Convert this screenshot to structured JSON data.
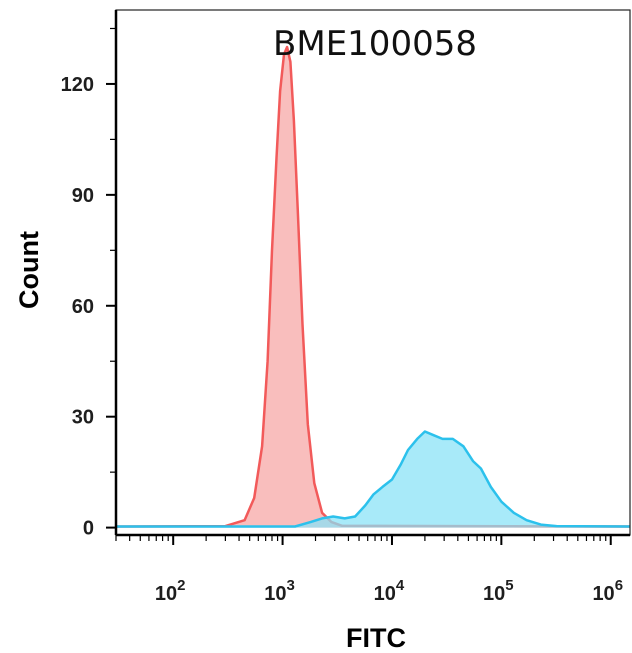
{
  "chart_data": {
    "type": "area",
    "title": "BME100058",
    "xlabel": "FITC",
    "ylabel": "Count",
    "x_scale": "log",
    "xlim": [
      30,
      1500000
    ],
    "ylim": [
      -2,
      140
    ],
    "x_ticks": [
      {
        "value": 100,
        "base": "10",
        "exp": "2"
      },
      {
        "value": 1000,
        "base": "10",
        "exp": "3"
      },
      {
        "value": 10000,
        "base": "10",
        "exp": "4"
      },
      {
        "value": 100000,
        "base": "10",
        "exp": "5"
      },
      {
        "value": 1000000,
        "base": "10",
        "exp": "6"
      }
    ],
    "y_ticks": [
      {
        "value": 0,
        "label": "0"
      },
      {
        "value": 30,
        "label": "30"
      },
      {
        "value": 60,
        "label": "60"
      },
      {
        "value": 90,
        "label": "90"
      },
      {
        "value": 120,
        "label": "120"
      }
    ],
    "grid": false,
    "legend": "none",
    "series": [
      {
        "color": "#f25a5a",
        "fill": "#f7a5a3",
        "points": [
          [
            30,
            0.3
          ],
          [
            300,
            0.4
          ],
          [
            450,
            2
          ],
          [
            550,
            8
          ],
          [
            650,
            22
          ],
          [
            730,
            45
          ],
          [
            800,
            75
          ],
          [
            880,
            100
          ],
          [
            950,
            118
          ],
          [
            1030,
            128
          ],
          [
            1100,
            130
          ],
          [
            1180,
            126
          ],
          [
            1270,
            110
          ],
          [
            1380,
            85
          ],
          [
            1520,
            55
          ],
          [
            1700,
            28
          ],
          [
            1950,
            12
          ],
          [
            2300,
            4
          ],
          [
            2800,
            1.5
          ],
          [
            3500,
            0.5
          ],
          [
            1500000,
            0.3
          ]
        ]
      },
      {
        "color": "#2cc1ec",
        "fill": "#86e2f7",
        "points": [
          [
            30,
            0.3
          ],
          [
            1300,
            0.3
          ],
          [
            1800,
            1.5
          ],
          [
            2300,
            2.5
          ],
          [
            2900,
            3
          ],
          [
            3700,
            2.5
          ],
          [
            4600,
            3
          ],
          [
            5700,
            6
          ],
          [
            6800,
            9
          ],
          [
            8200,
            11
          ],
          [
            10000,
            13
          ],
          [
            12000,
            17
          ],
          [
            14000,
            21
          ],
          [
            17000,
            24
          ],
          [
            20000,
            26
          ],
          [
            24000,
            25
          ],
          [
            29000,
            24
          ],
          [
            36000,
            24
          ],
          [
            45000,
            22
          ],
          [
            55000,
            18
          ],
          [
            65000,
            16
          ],
          [
            80000,
            11
          ],
          [
            100000,
            7
          ],
          [
            130000,
            4
          ],
          [
            170000,
            2
          ],
          [
            230000,
            0.8
          ],
          [
            320000,
            0.4
          ],
          [
            1500000,
            0.3
          ]
        ]
      }
    ]
  }
}
